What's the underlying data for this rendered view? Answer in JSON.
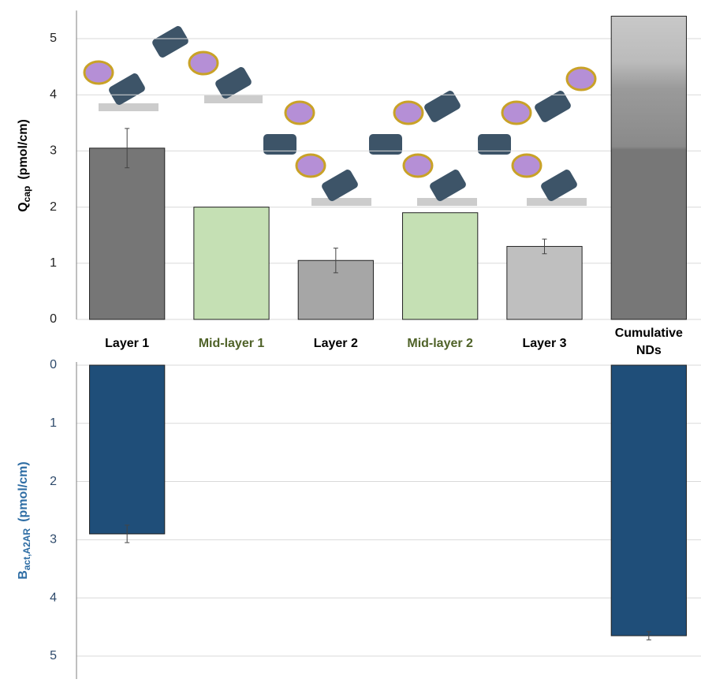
{
  "chart_data": [
    {
      "type": "bar",
      "ylabel": {
        "main": "Q",
        "sub": "cap",
        "unit": "(pmol/cm)"
      },
      "categories": [
        "Layer 1",
        "Mid-layer 1",
        "Layer 2",
        "Mid-layer 2",
        "Layer 3",
        "Cumulative NDs"
      ],
      "values": [
        3.05,
        2.0,
        1.05,
        1.9,
        1.3,
        5.4
      ],
      "errors": [
        0.35,
        null,
        0.22,
        null,
        0.13,
        null
      ],
      "colors": [
        "#767676",
        "#c5e0b4",
        "#a6a6a6",
        "#c5e0b4",
        "#bfbfbf",
        "url(#cum)"
      ],
      "label_colors": [
        "#000000",
        "#4f6228",
        "#000000",
        "#4f6228",
        "#000000",
        "#000000"
      ],
      "ylim": [
        0,
        5.5
      ],
      "yticks": [
        0,
        1,
        2,
        3,
        4,
        5
      ],
      "grid": true
    },
    {
      "type": "bar",
      "inverted": true,
      "ylabel": {
        "main": "B",
        "sub": "act,A2AR",
        "unit": "(pmol/cm)"
      },
      "values": [
        2.9,
        null,
        null,
        null,
        null,
        4.65
      ],
      "errors": [
        0.15,
        null,
        null,
        null,
        null,
        0.07
      ],
      "color": "#1f4e79",
      "ylim": [
        0,
        5.3
      ],
      "yticks": [
        0,
        1,
        2,
        3,
        4,
        5
      ],
      "grid": true
    }
  ]
}
